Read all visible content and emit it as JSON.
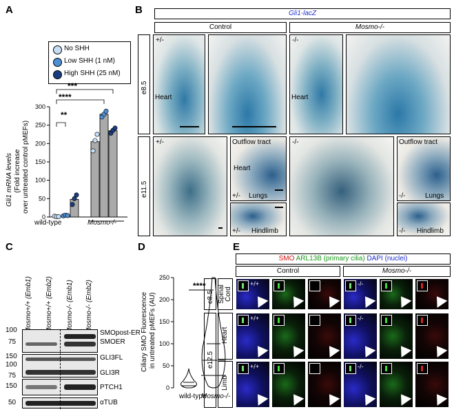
{
  "panelA": {
    "label": "A",
    "legend": [
      {
        "text": "No SHH",
        "color": "#c6def4"
      },
      {
        "text": "Low SHH (1 nM)",
        "color": "#4d8fd3"
      },
      {
        "text": "High SHH (25 nM)",
        "color": "#1a3d80"
      }
    ],
    "ylabel_line1": "Gli1 mRNA levels",
    "ylabel_line2": "(Fold increase",
    "ylabel_line3": "over untreated control pMEFs)",
    "yticks": [
      "0",
      "50",
      "100",
      "150",
      "200",
      "250",
      "300"
    ],
    "xlabels": [
      "wild-type",
      "Mosmo-/-"
    ],
    "sig": [
      "****",
      "***",
      "**"
    ]
  },
  "chart_data": {
    "type": "bar",
    "categories": [
      "wild-type",
      "Mosmo-/-"
    ],
    "series": [
      {
        "name": "No SHH",
        "values": [
          1,
          205
        ]
      },
      {
        "name": "Low SHH (1 nM)",
        "values": [
          5,
          280
        ]
      },
      {
        "name": "High SHH (25 nM)",
        "values": [
          48,
          235
        ]
      }
    ],
    "ylim": [
      0,
      300
    ],
    "points": {
      "wt": [
        [
          2,
          1,
          1
        ],
        [
          3,
          5,
          4
        ],
        [
          34,
          50,
          60
        ]
      ],
      "mo": [
        [
          180,
          208,
          225
        ],
        [
          272,
          280,
          288
        ],
        [
          228,
          236,
          242
        ]
      ]
    }
  },
  "panelB": {
    "label": "B",
    "title": "Gli1-lacZ",
    "control": "Control",
    "mosmo": "Mosmo-/-",
    "e85": "e8.5",
    "e115": "e11.5",
    "heart": "Heart",
    "outflow": "Outflow tract",
    "lungs": "Lungs",
    "hindlimb": "Hindlimb",
    "het": "+/-",
    "ko": "-/-"
  },
  "panelC": {
    "label": "C",
    "lanes": [
      "Mosmo+/+ (Emb1)",
      "Mosmo+/+ (Emb2)",
      "Mosmo-/- (Emb1)",
      "Mosmo-/- (Emb2)"
    ],
    "mw": [
      "100",
      "75",
      "150",
      "100",
      "75",
      "150",
      "50"
    ],
    "bands": [
      "SMOpost-ER",
      "SMOER",
      "GLI3FL",
      "GLI3R",
      "PTCH1",
      "αTUB"
    ]
  },
  "panelD": {
    "label": "D",
    "ylabel_line1": "Ciliary SMO Fluorescence",
    "ylabel_line2": "in untreated pMEFs (AU)",
    "yticks": [
      "0",
      "50",
      "100",
      "150",
      "200",
      "250"
    ],
    "xlabels": [
      "wild-type",
      "Mosmo-/-"
    ],
    "sig": "****"
  },
  "panelE": {
    "label": "E",
    "legend_smo": "SMO",
    "legend_arl": "ARL13B (primary cilia)",
    "legend_dapi": "DAPI (nuclei)",
    "control": "Control",
    "mosmo": "Mosmo-/-",
    "e85": "e8.5",
    "e125": "e12.5",
    "rows": [
      "Spinal Cord",
      "Heart",
      "Limb"
    ],
    "wt": "+/+",
    "ko": "-/-"
  }
}
